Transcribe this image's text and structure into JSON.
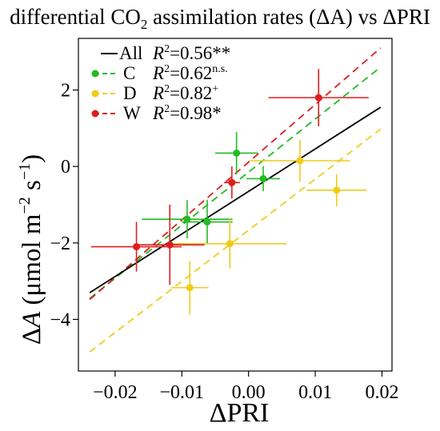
{
  "chart_data": {
    "type": "scatter",
    "title": "differential CO₂ assimilation rates (ΔA) vs ΔPRI",
    "title_parts": {
      "pre": "differential CO",
      "sub": "2",
      "post": " assimilation rates (ΔA) vs ΔPRI"
    },
    "xlabel": "ΔPRI",
    "ylabel": "ΔA (μmol m⁻² s⁻¹)",
    "ylabel_parts": {
      "delta": "Δ",
      "A": "A",
      "unit_open": " (μmol m",
      "exp1": "−2",
      "unit_mid": " s",
      "exp2": "−1",
      "unit_close": ")"
    },
    "xlim": [
      -0.0255,
      0.0215
    ],
    "ylim": [
      -5.35,
      3.35
    ],
    "xticks": [
      -0.02,
      -0.01,
      0.0,
      0.01,
      0.02
    ],
    "xtick_labels": [
      "−0.02",
      "−0.01",
      "0.00",
      "0.01",
      "0.02"
    ],
    "yticks": [
      -4,
      -2,
      0,
      2
    ],
    "ytick_labels": [
      "−4",
      "−2",
      "0",
      "2"
    ],
    "grid": false,
    "legend_position": "top-left",
    "legend": [
      {
        "key": "All",
        "label": "All",
        "r2_label": "R",
        "r2_exp": "2",
        "r2_value": "=0.56",
        "sig": "**",
        "sig_superscript": false
      },
      {
        "key": "C",
        "label": "C",
        "r2_label": "R",
        "r2_exp": "2",
        "r2_value": "=0.62",
        "sig": "n.s.",
        "sig_superscript": true
      },
      {
        "key": "D",
        "label": "D",
        "r2_label": "R",
        "r2_exp": "2",
        "r2_value": "=0.82",
        "sig": "+",
        "sig_superscript": true
      },
      {
        "key": "W",
        "label": "W",
        "r2_label": "R",
        "r2_exp": "2",
        "r2_value": "=0.98",
        "sig": "*",
        "sig_superscript": false
      }
    ],
    "series": [
      {
        "key": "C",
        "color": "#22bb22",
        "points": [
          {
            "x": -0.0092,
            "y": -1.38,
            "xerr": 0.0068,
            "yerr": 0.5
          },
          {
            "x": -0.0062,
            "y": -1.45,
            "xerr": 0.0038,
            "yerr": 0.58
          },
          {
            "x": -0.0018,
            "y": 0.35,
            "xerr": 0.0032,
            "yerr": 0.55
          },
          {
            "x": 0.0022,
            "y": -0.32,
            "xerr": 0.0025,
            "yerr": 0.33
          }
        ],
        "fit": {
          "x1": -0.0238,
          "y1": -3.45,
          "x2": 0.0198,
          "y2": 2.6
        }
      },
      {
        "key": "D",
        "color": "#f0cc1a",
        "points": [
          {
            "x": -0.0028,
            "y": -2.02,
            "xerr": 0.0085,
            "yerr": 0.65
          },
          {
            "x": -0.0088,
            "y": -3.17,
            "xerr": 0.0028,
            "yerr": 0.7
          },
          {
            "x": 0.0077,
            "y": 0.15,
            "xerr": 0.0075,
            "yerr": 0.55
          },
          {
            "x": 0.0132,
            "y": -0.62,
            "xerr": 0.0045,
            "yerr": 0.42
          }
        ],
        "fit": {
          "x1": -0.0238,
          "y1": -4.85,
          "x2": 0.0198,
          "y2": 0.98
        }
      },
      {
        "key": "W",
        "color": "#dd1f1f",
        "points": [
          {
            "x": -0.0168,
            "y": -2.1,
            "xerr": 0.0068,
            "yerr": 0.65
          },
          {
            "x": -0.0118,
            "y": -2.05,
            "xerr": 0.0052,
            "yerr": 1.05
          },
          {
            "x": -0.0025,
            "y": -0.42,
            "xerr": 0.0012,
            "yerr": 0.42
          },
          {
            "x": 0.0105,
            "y": 1.8,
            "xerr": 0.0075,
            "yerr": 0.75
          }
        ],
        "fit": {
          "x1": -0.0238,
          "y1": -3.48,
          "x2": 0.0198,
          "y2": 3.1
        }
      },
      {
        "key": "All",
        "color": "#000000",
        "points": [],
        "fit": {
          "x1": -0.0238,
          "y1": -3.3,
          "x2": 0.0198,
          "y2": 1.55
        }
      }
    ]
  }
}
